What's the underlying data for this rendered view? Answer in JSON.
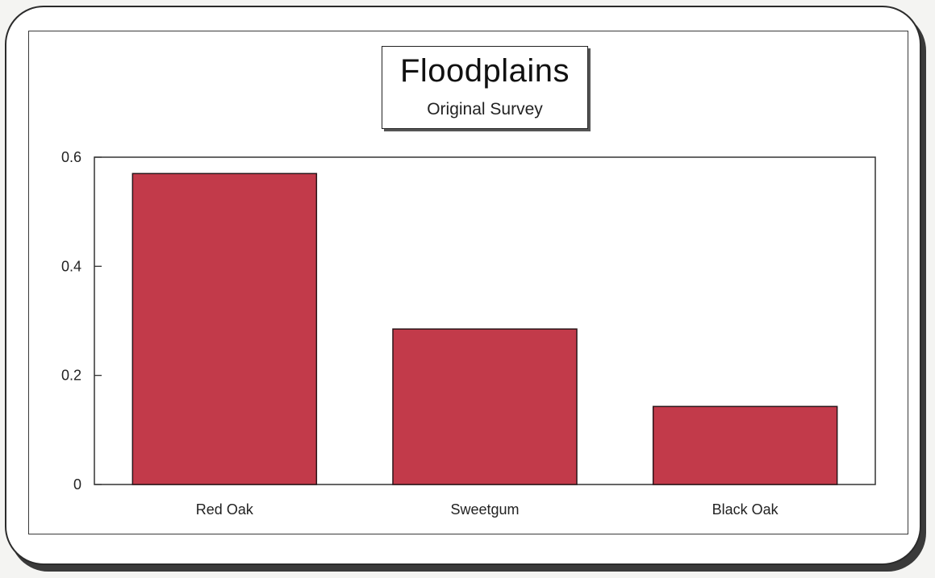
{
  "chart_data": {
    "type": "bar",
    "title": "Floodplains",
    "subtitle": "Original Survey",
    "categories": [
      "Red Oak",
      "Sweetgum",
      "Black Oak"
    ],
    "values": [
      0.57,
      0.285,
      0.143
    ],
    "yticks": [
      "0",
      "0.2",
      "0.4",
      "0.6"
    ],
    "ytick_values": [
      0,
      0.2,
      0.4,
      0.6
    ],
    "ylim": [
      0,
      0.6
    ],
    "xlabel": "",
    "ylabel": "",
    "grid": false,
    "bar_color": "#c23a4a"
  }
}
